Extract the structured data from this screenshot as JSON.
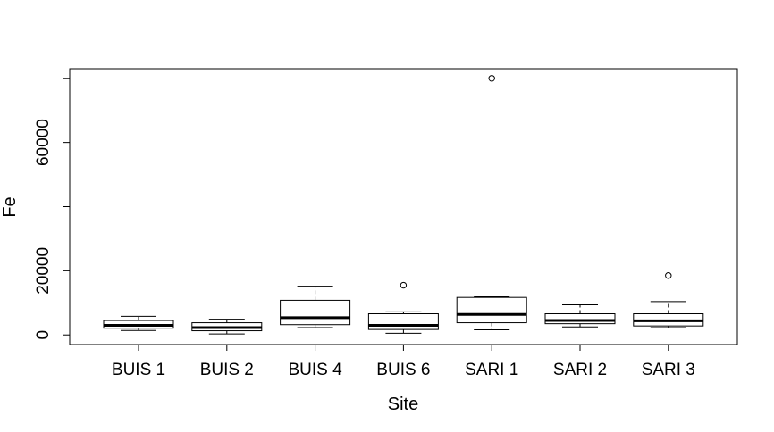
{
  "chart_data": {
    "type": "boxplot",
    "xlabel": "Site",
    "ylabel": "Fe",
    "categories": [
      "BUIS 1",
      "BUIS 2",
      "BUIS 4",
      "BUIS 6",
      "SARI 1",
      "SARI 2",
      "SARI 3"
    ],
    "yticks": [
      0,
      20000,
      60000
    ],
    "ylim": [
      -3000,
      83000
    ],
    "grid": false,
    "legend": "none",
    "boxes": [
      {
        "name": "BUIS 1",
        "whisker_low": 1400,
        "q1": 2100,
        "median": 3000,
        "q3": 4500,
        "whisker_high": 5800,
        "outliers": []
      },
      {
        "name": "BUIS 2",
        "whisker_low": 300,
        "q1": 1300,
        "median": 2300,
        "q3": 3800,
        "whisker_high": 4900,
        "outliers": []
      },
      {
        "name": "BUIS 4",
        "whisker_low": 2300,
        "q1": 3200,
        "median": 5400,
        "q3": 10800,
        "whisker_high": 15200,
        "outliers": []
      },
      {
        "name": "BUIS 6",
        "whisker_low": 500,
        "q1": 1700,
        "median": 3000,
        "q3": 6600,
        "whisker_high": 7200,
        "outliers": [
          15500
        ]
      },
      {
        "name": "SARI 1",
        "whisker_low": 1600,
        "q1": 3800,
        "median": 6400,
        "q3": 11700,
        "whisker_high": 11900,
        "outliers": [
          80000
        ]
      },
      {
        "name": "SARI 2",
        "whisker_low": 2500,
        "q1": 3500,
        "median": 4500,
        "q3": 6600,
        "whisker_high": 9400,
        "outliers": []
      },
      {
        "name": "SARI 3",
        "whisker_low": 2300,
        "q1": 2800,
        "median": 4400,
        "q3": 6600,
        "whisker_high": 10400,
        "outliers": [
          18500
        ]
      }
    ]
  }
}
